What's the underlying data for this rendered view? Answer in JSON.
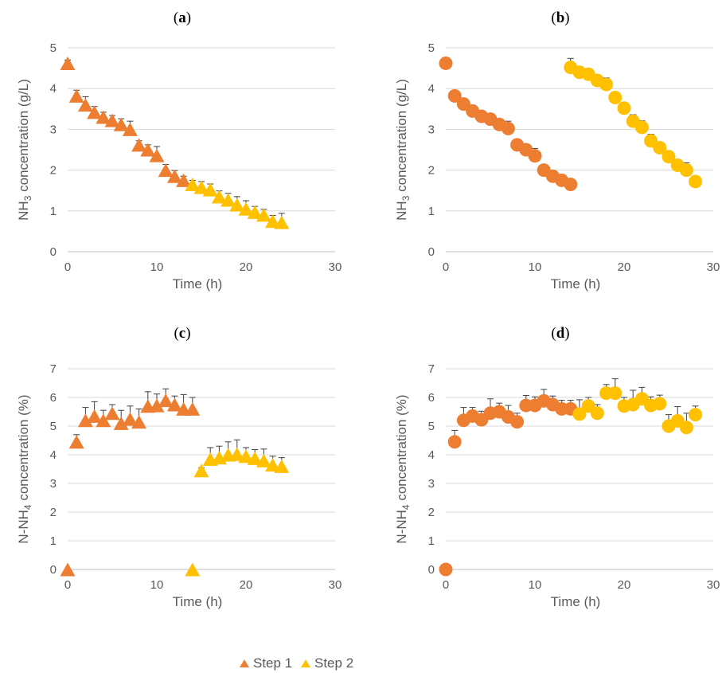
{
  "colors": {
    "step1": "#ED7D31",
    "step2": "#FFC000"
  },
  "legend": [
    {
      "label": "Step 1",
      "color": "#ED7D31",
      "marker": "triangle"
    },
    {
      "label": "Step 2",
      "color": "#FFC000",
      "marker": "triangle"
    }
  ],
  "chart_data": [
    {
      "panel": "a",
      "type": "scatter",
      "marker": "triangle",
      "xlabel": "Time (h)",
      "ylabel": "NH3 concentration (g/L)",
      "ylabel_main": "NH",
      "ylabel_sub": "3",
      "ylabel_rest": " concentration (g/L)",
      "xlim": [
        0,
        30
      ],
      "ylim": [
        0,
        5
      ],
      "xticks": [
        0,
        10,
        20,
        30
      ],
      "yticks": [
        0,
        1,
        2,
        3,
        4,
        5
      ],
      "grid": "horizontal",
      "series": [
        {
          "name": "Step 1",
          "color": "#ED7D31",
          "points": [
            [
              0,
              4.62,
              0.08
            ],
            [
              1,
              3.82,
              0.14
            ],
            [
              2,
              3.6,
              0.2
            ],
            [
              3,
              3.42,
              0.14
            ],
            [
              4,
              3.3,
              0.12
            ],
            [
              5,
              3.22,
              0.12
            ],
            [
              6,
              3.12,
              0.14
            ],
            [
              7,
              3.0,
              0.2
            ],
            [
              8,
              2.62,
              0.1
            ],
            [
              9,
              2.5,
              0.12
            ],
            [
              10,
              2.36,
              0.22
            ],
            [
              11,
              2.0,
              0.14
            ],
            [
              12,
              1.85,
              0.14
            ],
            [
              13,
              1.75,
              0.1
            ]
          ]
        },
        {
          "name": "Step 2",
          "color": "#FFC000",
          "points": [
            [
              14,
              1.65,
              0.1
            ],
            [
              15,
              1.58,
              0.14
            ],
            [
              16,
              1.52,
              0.14
            ],
            [
              17,
              1.35,
              0.14
            ],
            [
              18,
              1.27,
              0.16
            ],
            [
              19,
              1.15,
              0.2
            ],
            [
              20,
              1.05,
              0.2
            ],
            [
              21,
              0.97,
              0.14
            ],
            [
              22,
              0.9,
              0.14
            ],
            [
              23,
              0.75,
              0.14
            ],
            [
              24,
              0.72,
              0.22
            ]
          ]
        }
      ]
    },
    {
      "panel": "b",
      "type": "scatter",
      "marker": "circle",
      "xlabel": "Time (h)",
      "ylabel": "NH3 concentration (g/L)",
      "ylabel_main": "NH",
      "ylabel_sub": "3",
      "ylabel_rest": " concentration (g/L)",
      "xlim": [
        0,
        30
      ],
      "ylim": [
        0,
        5
      ],
      "xticks": [
        0,
        10,
        20,
        30
      ],
      "yticks": [
        0,
        1,
        2,
        3,
        4,
        5
      ],
      "grid": "horizontal",
      "series": [
        {
          "name": "Step 1",
          "color": "#ED7D31",
          "points": [
            [
              0,
              4.62,
              0.1
            ],
            [
              1,
              3.82,
              0.1
            ],
            [
              2,
              3.62,
              0.1
            ],
            [
              3,
              3.45,
              0.14
            ],
            [
              4,
              3.32,
              0.12
            ],
            [
              5,
              3.25,
              0.12
            ],
            [
              6,
              3.12,
              0.12
            ],
            [
              7,
              3.02,
              0.18
            ],
            [
              8,
              2.62,
              0.1
            ],
            [
              9,
              2.5,
              0.12
            ],
            [
              10,
              2.35,
              0.18
            ],
            [
              11,
              2.0,
              0.1
            ],
            [
              12,
              1.85,
              0.12
            ],
            [
              13,
              1.75,
              0.08
            ],
            [
              14,
              1.65,
              0.08
            ]
          ]
        },
        {
          "name": "Step 2",
          "color": "#FFC000",
          "points": [
            [
              14,
              4.52,
              0.22
            ],
            [
              15,
              4.4,
              0.1
            ],
            [
              16,
              4.35,
              0.1
            ],
            [
              17,
              4.2,
              0.1
            ],
            [
              18,
              4.1,
              0.16
            ],
            [
              19,
              3.78,
              0.12
            ],
            [
              20,
              3.52,
              0.12
            ],
            [
              21,
              3.2,
              0.16
            ],
            [
              22,
              3.05,
              0.16
            ],
            [
              23,
              2.72,
              0.16
            ],
            [
              24,
              2.55,
              0.12
            ],
            [
              25,
              2.33,
              0.12
            ],
            [
              26,
              2.12,
              0.12
            ],
            [
              27,
              2.0,
              0.18
            ],
            [
              28,
              1.72,
              0.08
            ]
          ]
        }
      ]
    },
    {
      "panel": "c",
      "type": "scatter",
      "marker": "triangle",
      "xlabel": "Time (h)",
      "ylabel": "N-NH4 concentration (%)",
      "ylabel_main": "N-NH",
      "ylabel_sub": "4",
      "ylabel_rest": " concentration (%)",
      "xlim": [
        0,
        30
      ],
      "ylim": [
        0,
        7
      ],
      "xticks": [
        0,
        10,
        20,
        30
      ],
      "yticks": [
        0,
        1,
        2,
        3,
        4,
        5,
        6,
        7
      ],
      "grid": "horizontal",
      "series": [
        {
          "name": "Step 1",
          "color": "#ED7D31",
          "points": [
            [
              0,
              0,
              0
            ],
            [
              1,
              4.45,
              0.25
            ],
            [
              2,
              5.2,
              0.45
            ],
            [
              3,
              5.35,
              0.5
            ],
            [
              4,
              5.2,
              0.35
            ],
            [
              5,
              5.45,
              0.3
            ],
            [
              6,
              5.1,
              0.45
            ],
            [
              7,
              5.25,
              0.45
            ],
            [
              8,
              5.15,
              0.45
            ],
            [
              9,
              5.7,
              0.5
            ],
            [
              10,
              5.72,
              0.4
            ],
            [
              11,
              5.9,
              0.4
            ],
            [
              12,
              5.75,
              0.3
            ],
            [
              13,
              5.6,
              0.5
            ],
            [
              14,
              5.6,
              0.4
            ]
          ]
        },
        {
          "name": "Step 2",
          "color": "#FFC000",
          "points": [
            [
              14,
              0,
              0
            ],
            [
              15,
              3.45,
              0.1
            ],
            [
              16,
              3.85,
              0.4
            ],
            [
              17,
              3.9,
              0.4
            ],
            [
              18,
              4.0,
              0.45
            ],
            [
              19,
              4.02,
              0.5
            ],
            [
              20,
              3.95,
              0.3
            ],
            [
              21,
              3.88,
              0.3
            ],
            [
              22,
              3.8,
              0.4
            ],
            [
              23,
              3.65,
              0.3
            ],
            [
              24,
              3.6,
              0.3
            ]
          ]
        }
      ]
    },
    {
      "panel": "d",
      "type": "scatter",
      "marker": "circle",
      "xlabel": "Time (h)",
      "ylabel": "N-NH4 concentration (%)",
      "ylabel_main": "N-NH",
      "ylabel_sub": "4",
      "ylabel_rest": " concentration (%)",
      "xlim": [
        0,
        30
      ],
      "ylim": [
        0,
        7
      ],
      "xticks": [
        0,
        10,
        20,
        30
      ],
      "yticks": [
        0,
        1,
        2,
        3,
        4,
        5,
        6,
        7
      ],
      "grid": "horizontal",
      "series": [
        {
          "name": "Step 1",
          "color": "#ED7D31",
          "points": [
            [
              0,
              0,
              0
            ],
            [
              1,
              4.45,
              0.4
            ],
            [
              2,
              5.2,
              0.45
            ],
            [
              3,
              5.35,
              0.3
            ],
            [
              4,
              5.22,
              0.3
            ],
            [
              5,
              5.45,
              0.5
            ],
            [
              6,
              5.5,
              0.3
            ],
            [
              7,
              5.32,
              0.4
            ],
            [
              8,
              5.15,
              0.3
            ],
            [
              9,
              5.72,
              0.35
            ],
            [
              10,
              5.72,
              0.3
            ],
            [
              11,
              5.88,
              0.4
            ],
            [
              12,
              5.75,
              0.3
            ],
            [
              13,
              5.6,
              0.3
            ],
            [
              14,
              5.6,
              0.3
            ]
          ]
        },
        {
          "name": "Step 2",
          "color": "#FFC000",
          "points": [
            [
              15,
              5.42,
              0.5
            ],
            [
              16,
              5.7,
              0.3
            ],
            [
              17,
              5.45,
              0.3
            ],
            [
              18,
              6.15,
              0.3
            ],
            [
              19,
              6.15,
              0.5
            ],
            [
              20,
              5.7,
              0.3
            ],
            [
              21,
              5.75,
              0.5
            ],
            [
              22,
              5.95,
              0.4
            ],
            [
              23,
              5.72,
              0.3
            ],
            [
              24,
              5.78,
              0.3
            ],
            [
              25,
              5.0,
              0.4
            ],
            [
              26,
              5.18,
              0.5
            ],
            [
              27,
              4.95,
              0.5
            ],
            [
              28,
              5.4,
              0.3
            ]
          ]
        }
      ]
    }
  ]
}
